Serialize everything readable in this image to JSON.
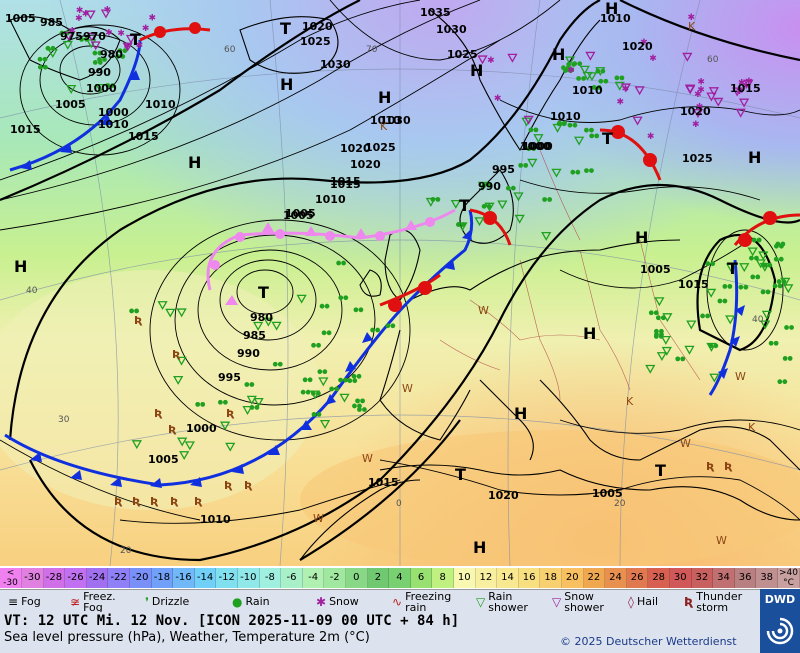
{
  "isobar_labels": [
    "1005",
    "985",
    "975",
    "970",
    "980",
    "990",
    "1000",
    "1005",
    "1010",
    "1015",
    "1000",
    "1010",
    "1015",
    "1020",
    "1025",
    "1030",
    "1035",
    "1030",
    "1025",
    "1010",
    "1020",
    "1015",
    "1005",
    "1030",
    "1025",
    "1020",
    "1015",
    "1010",
    "1005",
    "1000",
    "995",
    "990",
    "980",
    "985",
    "990",
    "995",
    "1000",
    "1005",
    "1010",
    "1015",
    "1020",
    "1005",
    "1010",
    "1020",
    "1010",
    "1015",
    "1020",
    "1025",
    "1010",
    "1000",
    "1015",
    "1005"
  ],
  "pressure_centers": {
    "high": "H",
    "low": "T"
  },
  "weather_glyphs": {
    "thunderstorm": "Ʀ",
    "wind": "W",
    "k": "K"
  },
  "temperature_labels": [
    "60",
    "70",
    "60",
    "40",
    "30",
    "20",
    "40",
    "0",
    "20",
    "20"
  ],
  "colorbar": {
    "unit_top": "<",
    "unit_bottom": "-30",
    "unit_right": "°C",
    "right_top": ">40",
    "values": [
      "-30",
      "-28",
      "-26",
      "-24",
      "-22",
      "-20",
      "-18",
      "-16",
      "-14",
      "-12",
      "-10",
      "-8",
      "-6",
      "-4",
      "-2",
      "0",
      "2",
      "4",
      "6",
      "8",
      "10",
      "12",
      "14",
      "16",
      "18",
      "20",
      "22",
      "24",
      "26",
      "28",
      "30",
      "32",
      "34",
      "36",
      "38"
    ],
    "colors": [
      "#e080e0",
      "#d070e8",
      "#c070f0",
      "#a070f0",
      "#9080f8",
      "#7890f8",
      "#70a0f8",
      "#70b8f8",
      "#70d0f8",
      "#80e0f0",
      "#90e8e8",
      "#a0f0e0",
      "#a8f0c8",
      "#b0f0b0",
      "#a0e8a0",
      "#88d888",
      "#70c870",
      "#78d070",
      "#98e070",
      "#c0f080",
      "#f8f8b0",
      "#f8f0a0",
      "#f8e890",
      "#f8e080",
      "#f8d070",
      "#f8c060",
      "#f0a850",
      "#e89050",
      "#e07850",
      "#d86050",
      "#d05858",
      "#c86060",
      "#c07070",
      "#b88080",
      "#c09090"
    ]
  },
  "legend": {
    "fog": "Fog",
    "freezing_fog": "Freez.\nFog",
    "drizzle": "Drizzle",
    "rain": "Rain",
    "snow": "Snow",
    "freezing_rain": "Freezing\nrain",
    "rain_shower": "Rain\nshower",
    "snow_shower": "Snow\nshower",
    "hail": "Hail",
    "thunderstorm": "Thunder\nstorm"
  },
  "info": {
    "vt_line": "VT: 12 UTC Mi.  12 Nov. [ICON 2025-11-09  00 UTC + 84 h]",
    "subtitle": "Sea level pressure (hPa), Weather, Temperature 2m (°C)",
    "copyright": "© 2025 Deutscher Wetterdienst"
  },
  "logo": {
    "text": "DWD"
  },
  "colors": {
    "warm_front": "#e01010",
    "cold_front": "#1030e0",
    "occluded_front": "#ee88ee",
    "isobar": "#000000",
    "coast": "#000000",
    "rain": "#20a020",
    "snow": "#a020a0"
  }
}
